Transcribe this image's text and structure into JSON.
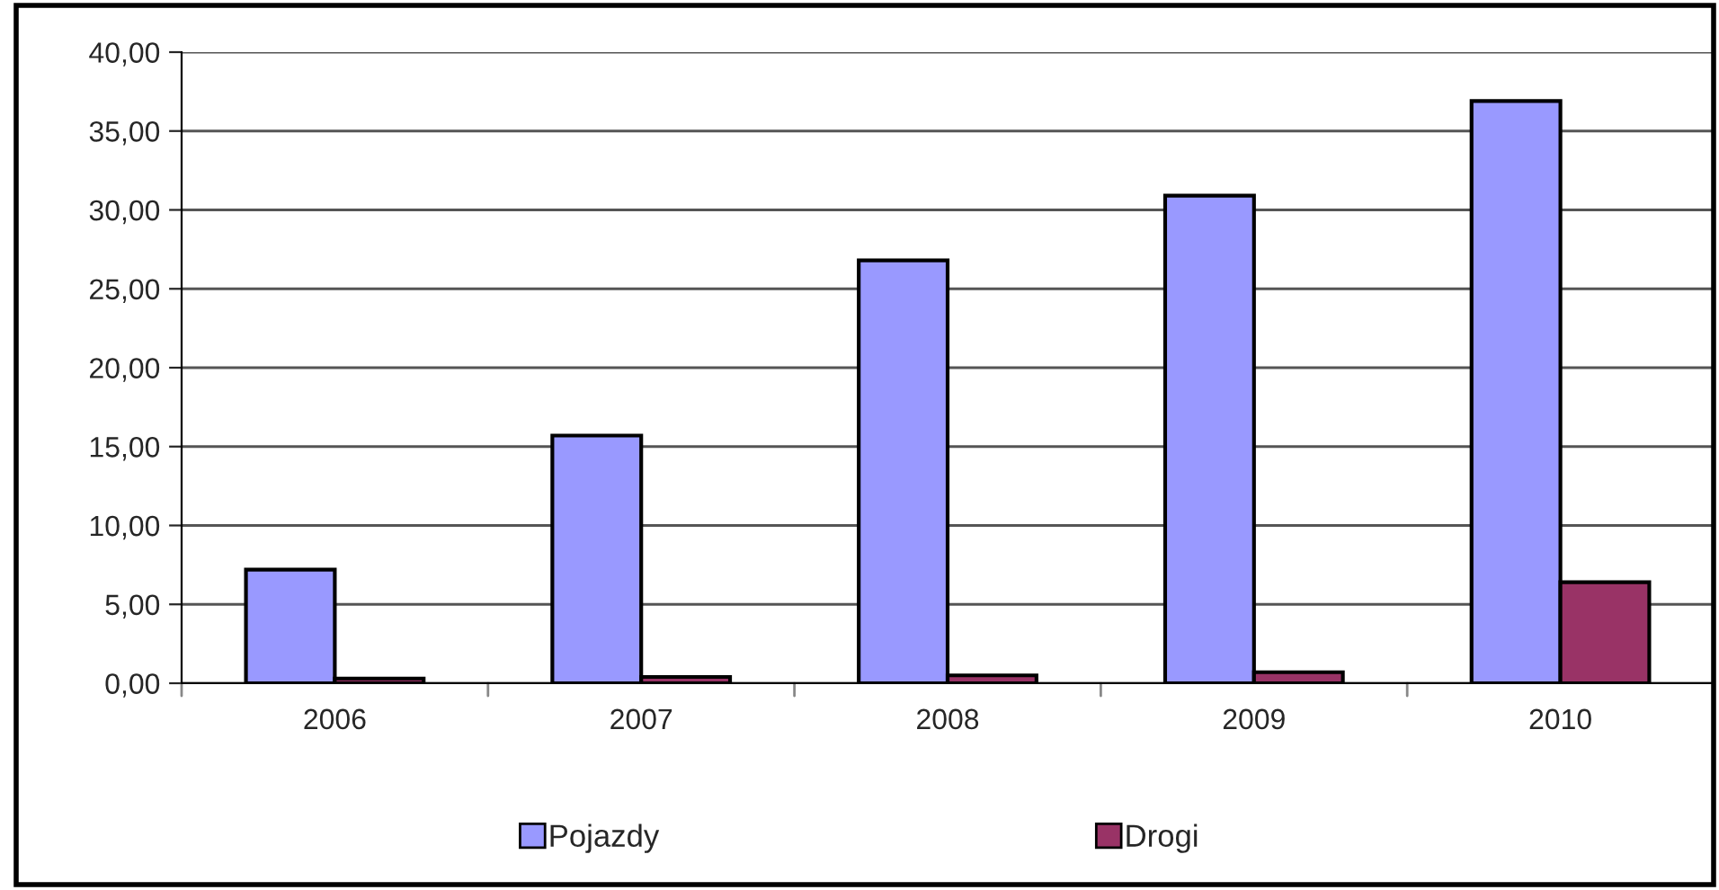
{
  "chart_data": {
    "type": "bar",
    "categories": [
      "2006",
      "2007",
      "2008",
      "2009",
      "2010"
    ],
    "series": [
      {
        "name": "Pojazdy",
        "color": "#9999ff",
        "values": [
          7.2,
          15.7,
          26.8,
          30.9,
          36.9
        ]
      },
      {
        "name": "Drogi",
        "color": "#993366",
        "values": [
          0.3,
          0.4,
          0.5,
          0.7,
          6.4
        ]
      }
    ],
    "ylim": [
      0,
      40
    ],
    "yticks": [
      {
        "value": 0,
        "label": "0,00"
      },
      {
        "value": 5,
        "label": "5,00"
      },
      {
        "value": 10,
        "label": "10,00"
      },
      {
        "value": 15,
        "label": "15,00"
      },
      {
        "value": 20,
        "label": "20,00"
      },
      {
        "value": 25,
        "label": "25,00"
      },
      {
        "value": 30,
        "label": "30,00"
      },
      {
        "value": 35,
        "label": "35,00"
      },
      {
        "value": 40,
        "label": "40,00"
      }
    ],
    "grid": "y",
    "legend": "bottom"
  }
}
